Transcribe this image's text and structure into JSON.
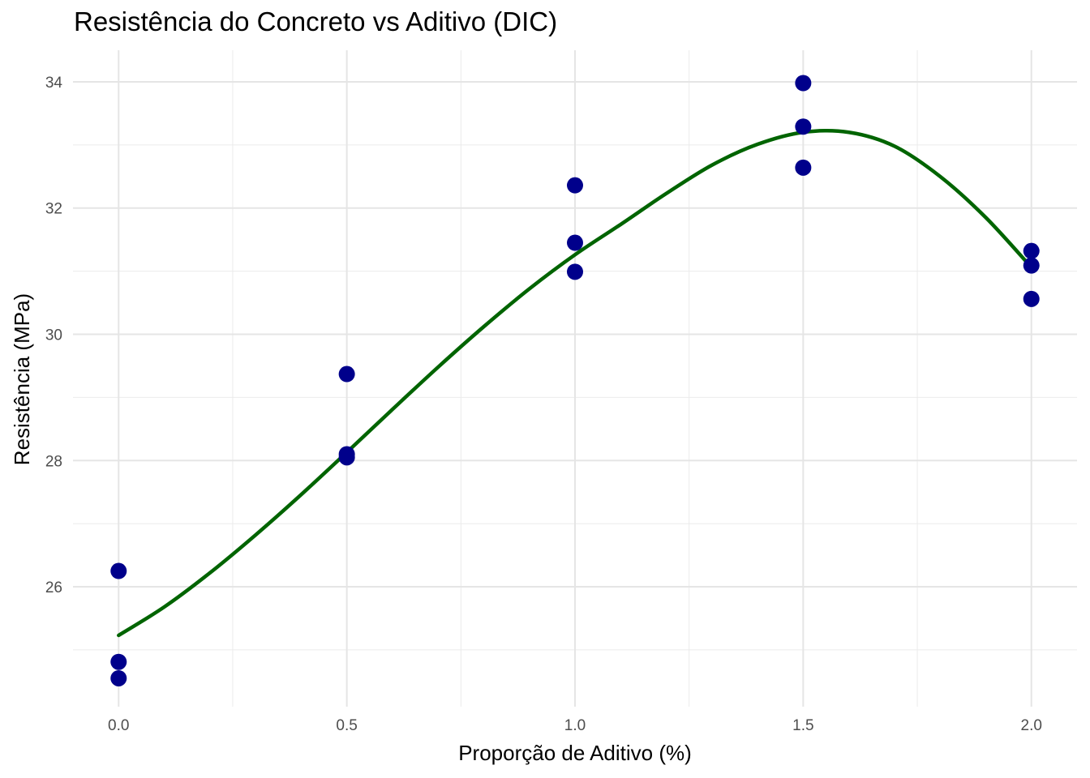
{
  "chart_data": {
    "type": "scatter",
    "title": "Resistência do Concreto vs Aditivo (DIC)",
    "xlabel": "Proporção de Aditivo (%)",
    "ylabel": "Resistência (MPa)",
    "xlim": [
      -0.1,
      2.1
    ],
    "ylim": [
      24.1,
      34.5
    ],
    "x_ticks": [
      0.0,
      0.5,
      1.0,
      1.5,
      2.0
    ],
    "x_tick_labels": [
      "0.0",
      "0.5",
      "1.0",
      "1.5",
      "2.0"
    ],
    "y_ticks": [
      26,
      28,
      30,
      32,
      34
    ],
    "y_tick_labels": [
      "26",
      "28",
      "30",
      "32",
      "34"
    ],
    "grid": true,
    "point_color": "#00008B",
    "curve_color": "#006400",
    "points": [
      {
        "x": 0.0,
        "y": 26.25
      },
      {
        "x": 0.0,
        "y": 24.81
      },
      {
        "x": 0.0,
        "y": 24.55
      },
      {
        "x": 0.5,
        "y": 29.37
      },
      {
        "x": 0.5,
        "y": 28.1
      },
      {
        "x": 0.5,
        "y": 28.05
      },
      {
        "x": 1.0,
        "y": 32.36
      },
      {
        "x": 1.0,
        "y": 31.45
      },
      {
        "x": 1.0,
        "y": 30.99
      },
      {
        "x": 1.5,
        "y": 33.98
      },
      {
        "x": 1.5,
        "y": 33.29
      },
      {
        "x": 1.5,
        "y": 32.64
      },
      {
        "x": 2.0,
        "y": 31.32
      },
      {
        "x": 2.0,
        "y": 31.09
      },
      {
        "x": 2.0,
        "y": 30.56
      }
    ],
    "fitted_curve": {
      "x": [
        0.0,
        0.1,
        0.2,
        0.3,
        0.4,
        0.5,
        0.6,
        0.7,
        0.8,
        0.9,
        1.0,
        1.1,
        1.2,
        1.3,
        1.4,
        1.5,
        1.6,
        1.7,
        1.8,
        1.9,
        2.0
      ],
      "y": [
        25.23,
        25.68,
        26.22,
        26.82,
        27.46,
        28.13,
        28.81,
        29.48,
        30.12,
        30.72,
        31.26,
        31.74,
        32.23,
        32.68,
        33.01,
        33.2,
        33.2,
        32.98,
        32.5,
        31.85,
        31.06
      ]
    }
  }
}
